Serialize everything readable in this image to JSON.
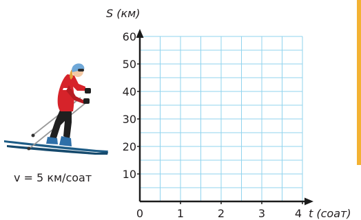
{
  "axes": {
    "y_title": "S (км)",
    "x_title": "t (соат)",
    "y_ticks": [
      {
        "label": "60",
        "value": 60
      },
      {
        "label": "50",
        "value": 50
      },
      {
        "label": "40",
        "value": 40
      },
      {
        "label": "30",
        "value": 30
      },
      {
        "label": "20",
        "value": 20
      },
      {
        "label": "10",
        "value": 10
      }
    ],
    "x_ticks": [
      {
        "label": "0",
        "value": 0
      },
      {
        "label": "1",
        "value": 1
      },
      {
        "label": "2",
        "value": 2
      },
      {
        "label": "3",
        "value": 3
      },
      {
        "label": "4",
        "value": 4
      }
    ],
    "x_range": [
      0,
      4
    ],
    "y_range": [
      0,
      60
    ],
    "grid": true,
    "grid_subdivisions": 2
  },
  "skier": {
    "speed_label": "v = 5 км/соат"
  },
  "colors": {
    "grid": "#8fd3ee",
    "axis": "#1b1b1b",
    "text": "#231f20",
    "jacket": "#d6232a",
    "skis": "#1d5c86",
    "edge_strip": "#f3b233"
  }
}
